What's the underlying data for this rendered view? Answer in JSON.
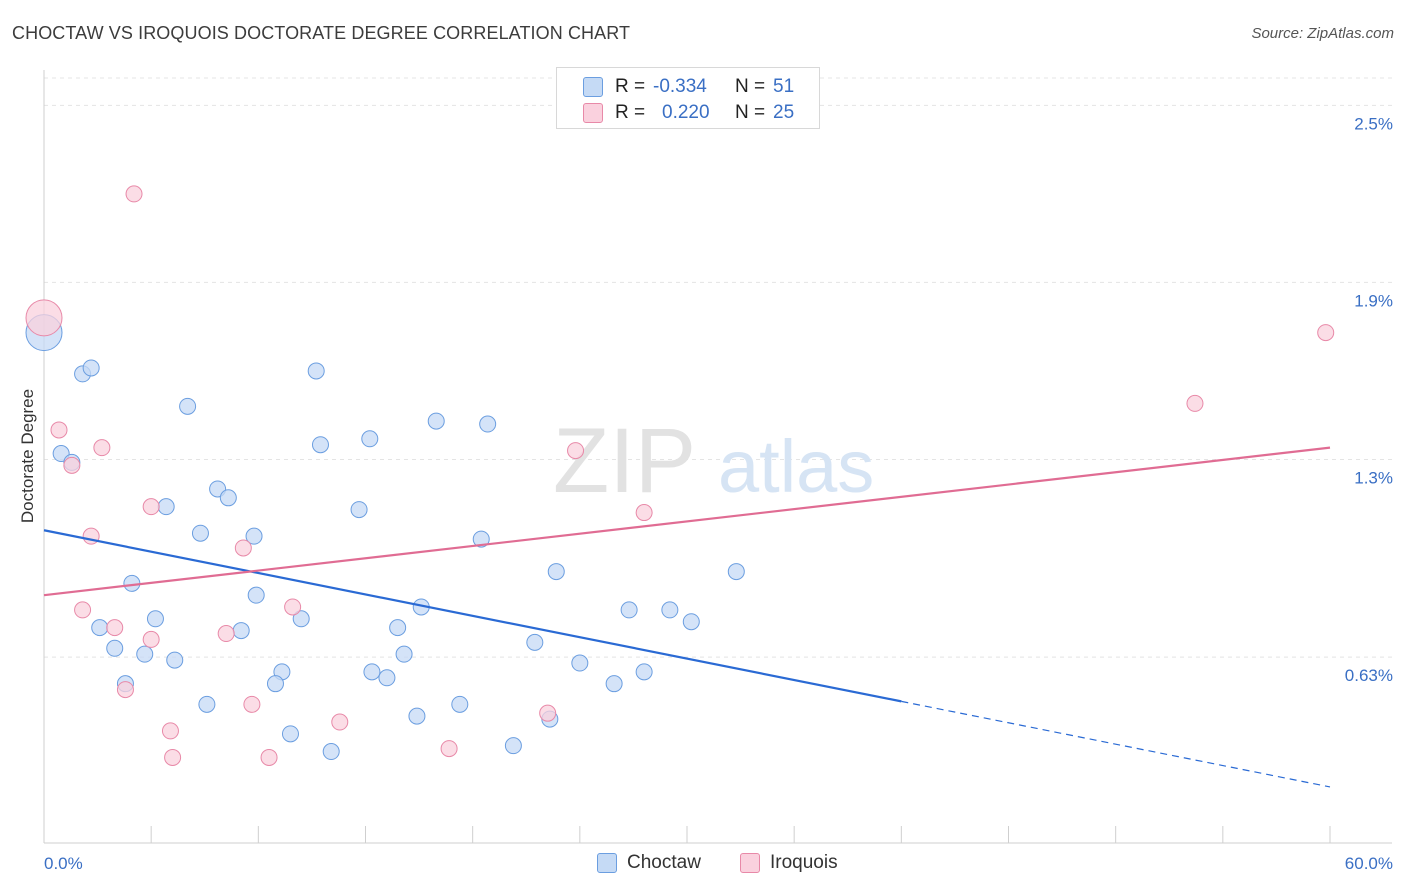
{
  "title": "CHOCTAW VS IROQUOIS DOCTORATE DEGREE CORRELATION CHART",
  "source": "Source: ZipAtlas.com",
  "watermark": {
    "zip": "ZIP",
    "atlas": "atlas"
  },
  "legend": {
    "series": [
      {
        "name": "Choctaw",
        "r_label": "R =",
        "r_value": "-0.334",
        "n_label": "N =",
        "n_value": "51",
        "color": "#a9c8f0",
        "stroke": "#6b9ee0"
      },
      {
        "name": "Iroquois",
        "r_label": "R =",
        "r_value": "0.220",
        "n_label": "N =",
        "n_value": "25",
        "color": "#f7bccd",
        "stroke": "#e889a8"
      }
    ]
  },
  "chart_data": {
    "type": "scatter",
    "title": "CHOCTAW VS IROQUOIS DOCTORATE DEGREE CORRELATION CHART",
    "xlabel": "",
    "ylabel": "Doctorate Degree",
    "xlim": [
      0.0,
      60.0
    ],
    "ylim": [
      0.0,
      2.62
    ],
    "x_tick_labels": [
      "0.0%",
      "60.0%"
    ],
    "y_ticks": [
      {
        "value": 0.63,
        "label": "0.63%"
      },
      {
        "value": 1.3,
        "label": "1.3%"
      },
      {
        "value": 1.9,
        "label": "1.9%"
      },
      {
        "value": 2.5,
        "label": "2.5%"
      }
    ],
    "grid": true,
    "series": [
      {
        "name": "Choctaw",
        "color": "#6b9ee0",
        "fill": "#c5daf5",
        "trend": {
          "x0": 0.0,
          "y0": 1.06,
          "x1": 40.0,
          "y1": 0.48,
          "dash_to_x": 60.0,
          "dash_to_y": 0.19
        },
        "points": [
          {
            "x": 0.0,
            "y": 1.73,
            "big": true
          },
          {
            "x": 1.8,
            "y": 1.59
          },
          {
            "x": 2.2,
            "y": 1.61
          },
          {
            "x": 0.8,
            "y": 1.32
          },
          {
            "x": 1.3,
            "y": 1.29
          },
          {
            "x": 6.7,
            "y": 1.48
          },
          {
            "x": 12.7,
            "y": 1.6
          },
          {
            "x": 12.9,
            "y": 1.35
          },
          {
            "x": 15.2,
            "y": 1.37
          },
          {
            "x": 18.3,
            "y": 1.43
          },
          {
            "x": 20.7,
            "y": 1.42
          },
          {
            "x": 8.1,
            "y": 1.2
          },
          {
            "x": 8.6,
            "y": 1.17
          },
          {
            "x": 5.7,
            "y": 1.14
          },
          {
            "x": 14.7,
            "y": 1.13
          },
          {
            "x": 7.3,
            "y": 1.05
          },
          {
            "x": 9.8,
            "y": 1.04
          },
          {
            "x": 20.4,
            "y": 1.03
          },
          {
            "x": 23.9,
            "y": 0.92
          },
          {
            "x": 32.3,
            "y": 0.92
          },
          {
            "x": 4.1,
            "y": 0.88
          },
          {
            "x": 9.9,
            "y": 0.84
          },
          {
            "x": 17.6,
            "y": 0.8
          },
          {
            "x": 27.3,
            "y": 0.79
          },
          {
            "x": 29.2,
            "y": 0.79
          },
          {
            "x": 5.2,
            "y": 0.76
          },
          {
            "x": 12.0,
            "y": 0.76
          },
          {
            "x": 30.2,
            "y": 0.75
          },
          {
            "x": 2.6,
            "y": 0.73
          },
          {
            "x": 9.2,
            "y": 0.72
          },
          {
            "x": 16.5,
            "y": 0.73
          },
          {
            "x": 22.9,
            "y": 0.68
          },
          {
            "x": 3.3,
            "y": 0.66
          },
          {
            "x": 4.7,
            "y": 0.64
          },
          {
            "x": 6.1,
            "y": 0.62
          },
          {
            "x": 16.8,
            "y": 0.64
          },
          {
            "x": 25.0,
            "y": 0.61
          },
          {
            "x": 11.1,
            "y": 0.58
          },
          {
            "x": 15.3,
            "y": 0.58
          },
          {
            "x": 16.0,
            "y": 0.56
          },
          {
            "x": 28.0,
            "y": 0.58
          },
          {
            "x": 3.8,
            "y": 0.54
          },
          {
            "x": 10.8,
            "y": 0.54
          },
          {
            "x": 26.6,
            "y": 0.54
          },
          {
            "x": 7.6,
            "y": 0.47
          },
          {
            "x": 19.4,
            "y": 0.47
          },
          {
            "x": 17.4,
            "y": 0.43
          },
          {
            "x": 23.6,
            "y": 0.42
          },
          {
            "x": 11.5,
            "y": 0.37
          },
          {
            "x": 21.9,
            "y": 0.33
          },
          {
            "x": 13.4,
            "y": 0.31
          }
        ]
      },
      {
        "name": "Iroquois",
        "color": "#e889a8",
        "fill": "#fad1de",
        "trend": {
          "x0": 0.0,
          "y0": 0.84,
          "x1": 60.0,
          "y1": 1.34
        },
        "points": [
          {
            "x": 0.0,
            "y": 1.78,
            "big": true
          },
          {
            "x": 4.2,
            "y": 2.2
          },
          {
            "x": 59.8,
            "y": 1.73
          },
          {
            "x": 53.7,
            "y": 1.49
          },
          {
            "x": 0.7,
            "y": 1.4
          },
          {
            "x": 2.7,
            "y": 1.34
          },
          {
            "x": 1.3,
            "y": 1.28
          },
          {
            "x": 24.8,
            "y": 1.33
          },
          {
            "x": 28.0,
            "y": 1.12
          },
          {
            "x": 5.0,
            "y": 1.14
          },
          {
            "x": 2.2,
            "y": 1.04
          },
          {
            "x": 9.3,
            "y": 1.0
          },
          {
            "x": 11.6,
            "y": 0.8
          },
          {
            "x": 1.8,
            "y": 0.79
          },
          {
            "x": 3.3,
            "y": 0.73
          },
          {
            "x": 5.0,
            "y": 0.69
          },
          {
            "x": 8.5,
            "y": 0.71
          },
          {
            "x": 3.8,
            "y": 0.52
          },
          {
            "x": 9.7,
            "y": 0.47
          },
          {
            "x": 23.5,
            "y": 0.44
          },
          {
            "x": 13.8,
            "y": 0.41
          },
          {
            "x": 5.9,
            "y": 0.38
          },
          {
            "x": 18.9,
            "y": 0.32
          },
          {
            "x": 6.0,
            "y": 0.29
          },
          {
            "x": 10.5,
            "y": 0.29
          }
        ]
      }
    ]
  }
}
